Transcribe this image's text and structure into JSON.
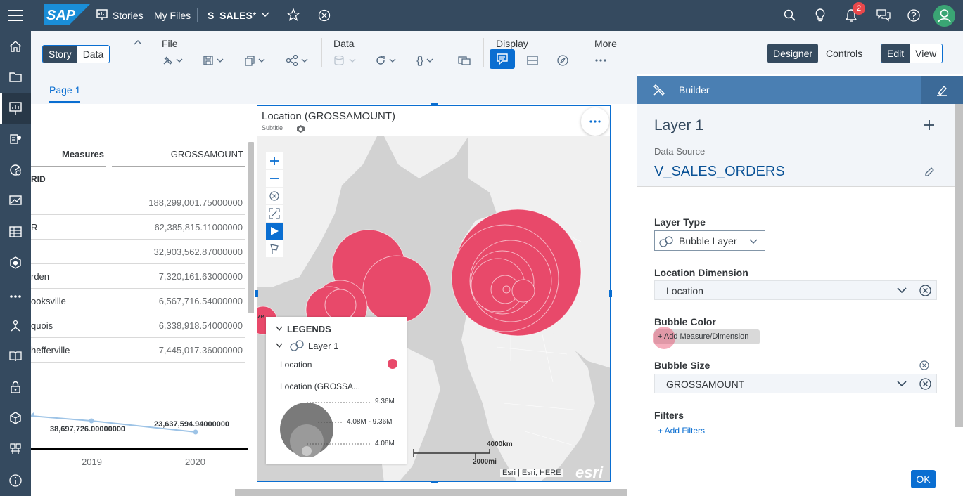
{
  "shell": {
    "logo": "SAP",
    "stories": "Stories",
    "my_files": "My Files",
    "file_name": "S_SALES",
    "modified_mark": "*",
    "notification_count": "2"
  },
  "toolbar": {
    "story": "Story",
    "data": "Data",
    "file": "File",
    "data_section": "Data",
    "display": "Display",
    "more": "More",
    "designer": "Designer",
    "controls": "Controls",
    "edit": "Edit",
    "view": "View"
  },
  "page": {
    "tab": "Page 1"
  },
  "table": {
    "col_measures": "Measures",
    "col_amount": "GROSSAMOUNT",
    "group_label": "RID",
    "rows": [
      {
        "label": "",
        "value": "188,299,001.75000000"
      },
      {
        "label": "R",
        "value": "62,385,815.11000000"
      },
      {
        "label": "",
        "value": "32,903,562.87000000"
      },
      {
        "label": "rden",
        "value": "7,320,161.63000000"
      },
      {
        "label": "ooksville",
        "value": "6,567,716.54000000"
      },
      {
        "label": "quois",
        "value": "6,338,918.54000000"
      },
      {
        "label": "hefferville",
        "value": "7,445,017.36000000"
      }
    ]
  },
  "line_chart": {
    "label_2019": "38,697,726.00000000",
    "label_2020": "23,637,594.94000000",
    "year_2019": "2019",
    "year_2020": "2020"
  },
  "map": {
    "title": "Location (GROSSAMOUNT)",
    "subtitle": "Subtitle",
    "legend_title": "LEGENDS",
    "layer": "Layer 1",
    "location": "Location",
    "size_title": "Location (GROSSA...",
    "size_max": "9.36M",
    "size_mid": "4.08M - 9.36M",
    "size_min": "4.08M",
    "scale_km": "4000km",
    "scale_mi": "2000mi",
    "attribution": "Esri | Esri, HERE",
    "esri": "esri",
    "partial_label": "ze",
    "accent_color": "#e8496a"
  },
  "builder": {
    "title": "Builder",
    "layer": "Layer 1",
    "ds_label": "Data Source",
    "ds_value": "V_SALES_ORDERS",
    "layer_type_label": "Layer Type",
    "layer_type_value": "Bubble Layer",
    "loc_dim_label": "Location Dimension",
    "loc_dim_value": "Location",
    "bubble_color_label": "Bubble Color",
    "add_measure": "+ Add Measure/Dimension",
    "bubble_size_label": "Bubble Size",
    "bubble_size_value": "GROSSAMOUNT",
    "filters_label": "Filters",
    "add_filters": "+ Add Filters",
    "ok": "OK"
  }
}
